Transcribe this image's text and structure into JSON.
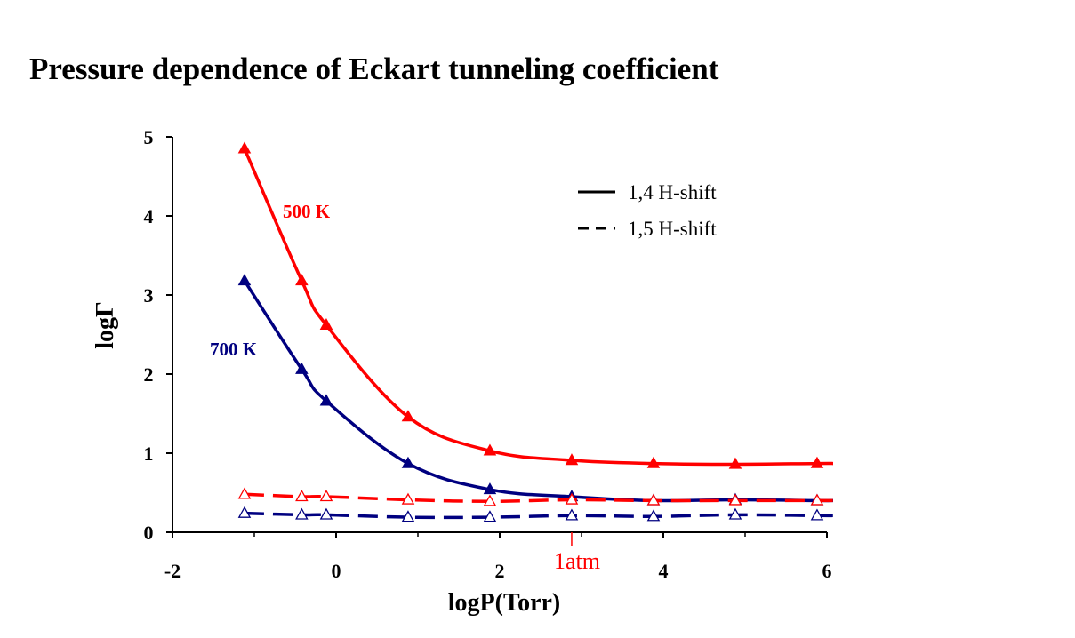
{
  "title": "Pressure dependence of Eckart tunneling coefficient",
  "colors": {
    "red": "#ff0000",
    "blue": "#000080",
    "axis": "#000000"
  },
  "chart_data": {
    "type": "line",
    "title": "Pressure dependence of Eckart tunneling coefficient",
    "xlabel": "logP(Torr)",
    "ylabel": "logΓ",
    "xlim": [
      -2,
      6
    ],
    "ylim": [
      0,
      5
    ],
    "xticks": [
      "-2",
      "0",
      "2",
      "4",
      "6"
    ],
    "yticks": [
      "0",
      "1",
      "2",
      "3",
      "4",
      "5"
    ],
    "grid": false,
    "legend": {
      "position": "top-right",
      "entries": [
        {
          "label": "1,4 H-shift",
          "style": "solid"
        },
        {
          "label": "1,5 H-shift",
          "style": "dashed"
        }
      ]
    },
    "annotations": [
      {
        "text": "500 K",
        "color": "red"
      },
      {
        "text": "700 K",
        "color": "blue"
      },
      {
        "text": "1atm",
        "x": 2.88,
        "color": "red"
      }
    ],
    "x": [
      -1.12,
      -0.42,
      -0.12,
      0.88,
      1.88,
      2.88,
      3.88,
      4.88,
      5.88
    ],
    "series": [
      {
        "color": "red",
        "style": "solid",
        "marker": "filled-triangle",
        "values": [
          4.85,
          3.18,
          2.62,
          1.46,
          1.03,
          0.91,
          0.87,
          0.86,
          0.87
        ]
      },
      {
        "color": "blue",
        "style": "solid",
        "marker": "filled-triangle",
        "values": [
          3.18,
          2.06,
          1.66,
          0.87,
          0.54,
          0.45,
          0.4,
          0.41,
          0.4
        ]
      },
      {
        "color": "red",
        "style": "dashed",
        "marker": "open-triangle",
        "values": [
          0.48,
          0.45,
          0.45,
          0.41,
          0.39,
          0.41,
          0.4,
          0.4,
          0.4
        ]
      },
      {
        "color": "blue",
        "style": "dashed",
        "marker": "open-triangle",
        "values": [
          0.24,
          0.22,
          0.22,
          0.19,
          0.19,
          0.21,
          0.2,
          0.22,
          0.21
        ]
      }
    ]
  }
}
